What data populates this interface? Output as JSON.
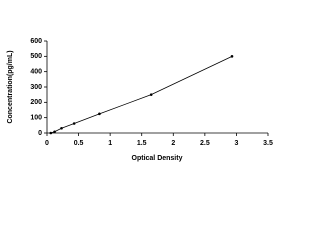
{
  "chart_data": {
    "type": "line",
    "xlabel": "Optical Density",
    "ylabel": "Concentration(pg/mL)",
    "x": [
      0.06,
      0.12,
      0.23,
      0.43,
      0.83,
      1.65,
      2.93
    ],
    "values": [
      0,
      8,
      31,
      62,
      125,
      250,
      500
    ],
    "color": "#000000",
    "xlim": [
      0,
      3.5
    ],
    "xticks": [
      0,
      0.5,
      1,
      1.5,
      2,
      2.5,
      3,
      3.5
    ],
    "ylim": [
      0,
      600
    ],
    "yticks": [
      0,
      100,
      200,
      300,
      400,
      500,
      600
    ]
  }
}
